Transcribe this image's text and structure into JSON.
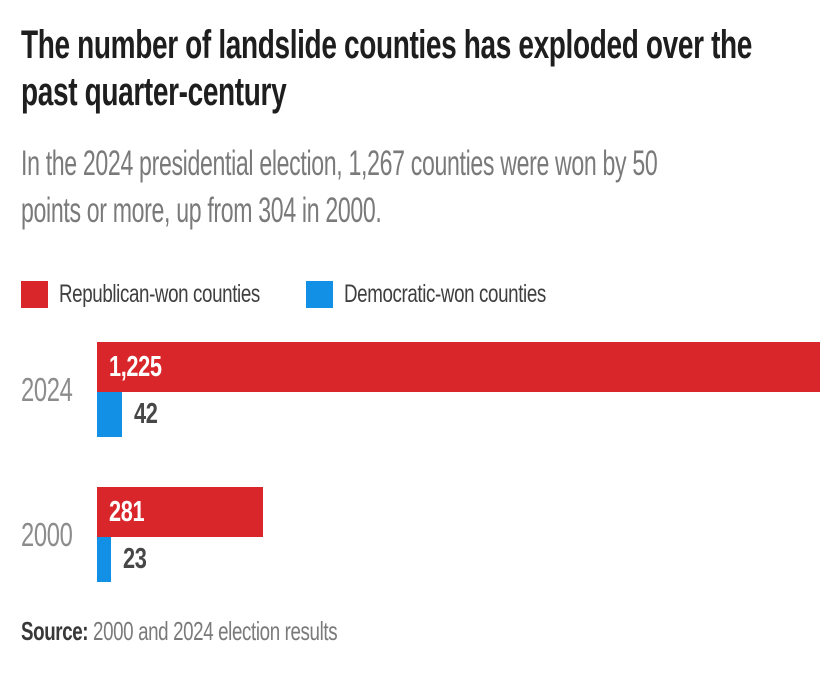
{
  "colors": {
    "republican": "#d8262b",
    "democratic": "#1190e5",
    "title_text": "#1e1e1e",
    "muted_text": "#7a7a7a",
    "background": "#ffffff"
  },
  "title": {
    "lines": [
      "The number of landslide counties has exploded over the",
      "past quarter-century"
    ]
  },
  "subtitle": {
    "lines": [
      "In the 2024 presidential election, 1,267 counties were won by 50",
      "points or more, up from 304 in 2000."
    ]
  },
  "legend": [
    {
      "label": "Republican-won counties",
      "color": "#d8262b"
    },
    {
      "label": "Democratic-won counties",
      "color": "#1190e5"
    }
  ],
  "source": {
    "label": "Source:",
    "text": " 2000 and 2024 election results"
  },
  "chart_data": {
    "type": "bar",
    "orientation": "horizontal",
    "title": "The number of landslide counties has exploded over the past quarter-century",
    "subtitle": "In the 2024 presidential election, 1,267 counties were won by 50 points or more, up from 304 in 2000.",
    "categories": [
      "2024",
      "2000"
    ],
    "series": [
      {
        "name": "Republican-won counties",
        "color": "#d8262b",
        "values": [
          1225,
          281
        ],
        "labels": [
          "1,225",
          "281"
        ]
      },
      {
        "name": "Democratic-won counties",
        "color": "#1190e5",
        "values": [
          42,
          23
        ],
        "labels": [
          "42",
          "23"
        ]
      }
    ],
    "xlim": [
      0,
      1225
    ],
    "grid": false,
    "legend_position": "top",
    "value_labels": true,
    "source": "Source: 2000 and 2024 election results"
  }
}
